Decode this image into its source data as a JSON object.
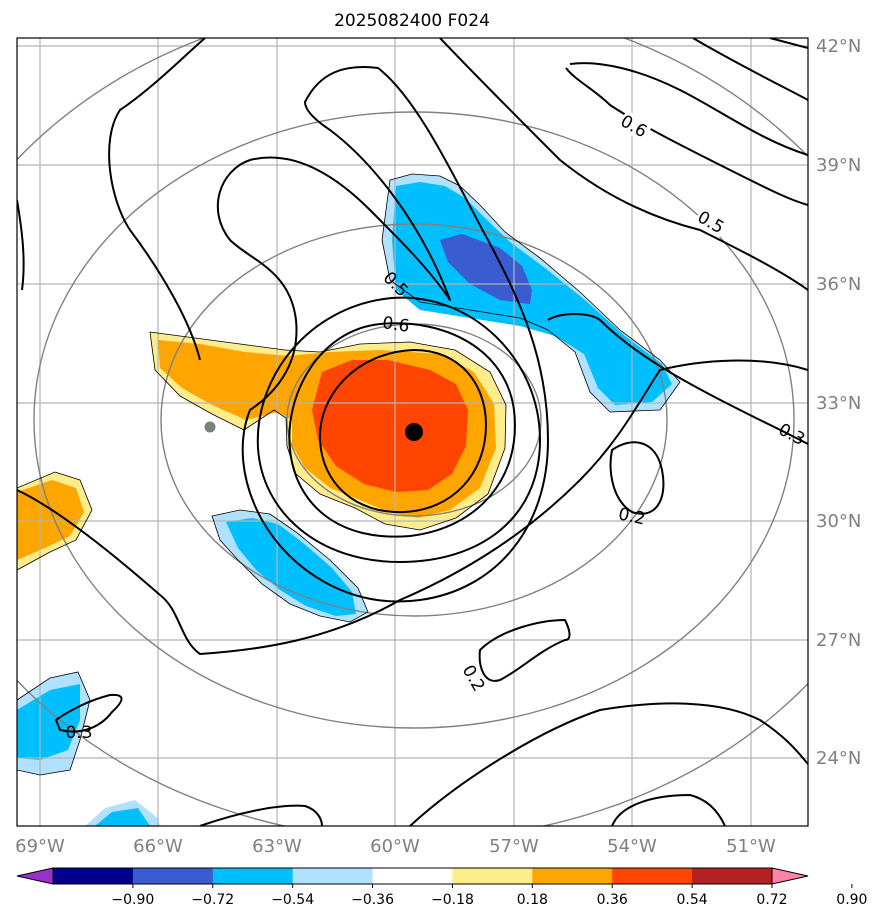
{
  "title": "2025082400 F024",
  "lat_labels": [
    "42°N",
    "39°N",
    "36°N",
    "33°N",
    "30°N",
    "27°N",
    "24°N"
  ],
  "lon_labels": [
    "69°W",
    "66°W",
    "63°W",
    "60°W",
    "57°W",
    "54°W",
    "51°W"
  ],
  "colorbar": {
    "ticks": [
      "−0.90",
      "−0.72",
      "−0.54",
      "−0.36",
      "−0.18",
      "0.18",
      "0.36",
      "0.54",
      "0.72",
      "0.90"
    ],
    "colors": [
      "#9932cc",
      "#00008b",
      "#3b5bd1",
      "#00bfff",
      "#b0e2ff",
      "#ffffff",
      "#ffec8b",
      "#ffa500",
      "#ff4500",
      "#b22222",
      "#ff82ab"
    ]
  },
  "fill_colors": {
    "orange": "#ffa500",
    "red_orange": "#ff4500",
    "light_yellow": "#ffec8b",
    "deep_sky_blue": "#00bfff",
    "light_sky_blue": "#b0e2ff",
    "royal_blue": "#3b5bd1"
  },
  "contour_labels": [
    "0.6",
    "0.5",
    "0.5",
    "0.6",
    "0.3",
    "0.2",
    "0.2",
    "0.3"
  ],
  "markers": {
    "storm_center": "black-dot",
    "secondary": "gray-dot"
  }
}
